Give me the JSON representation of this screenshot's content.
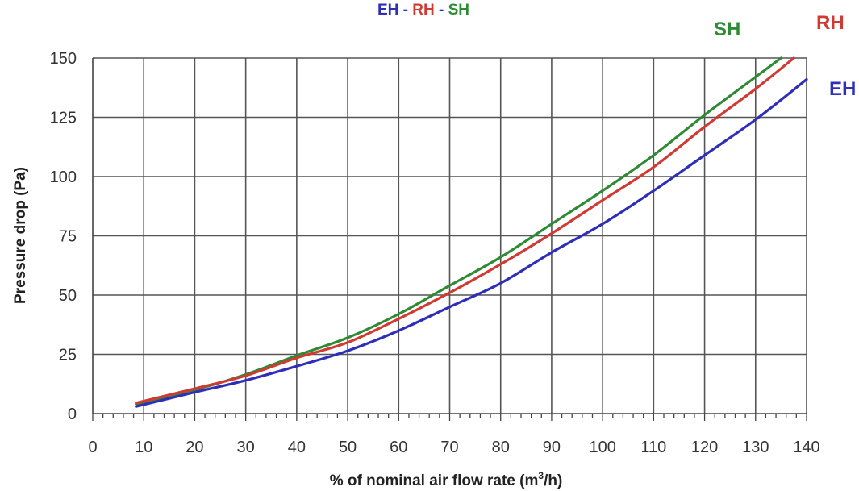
{
  "chart_data": {
    "type": "line",
    "title_parts": [
      {
        "text": "EH",
        "color": "#2e2eb8"
      },
      {
        "text": " - ",
        "color": "#2e2eb8"
      },
      {
        "text": "RH",
        "color": "#d03a32"
      },
      {
        "text": " - ",
        "color": "#2e2eb8"
      },
      {
        "text": "SH",
        "color": "#2f8a34"
      }
    ],
    "xlabel": "% of nominal air flow rate (m",
    "xlabel_sup": "3",
    "xlabel_end": "/h)",
    "ylabel": "Pressure drop (Pa)",
    "xlim": [
      0,
      140
    ],
    "ylim": [
      0,
      150
    ],
    "x_ticks": [
      0,
      10,
      20,
      30,
      40,
      50,
      60,
      70,
      80,
      90,
      100,
      110,
      120,
      130,
      140
    ],
    "y_ticks": [
      0,
      25,
      50,
      75,
      100,
      125,
      150
    ],
    "grid": true,
    "series": [
      {
        "name": "SH",
        "color": "#2f8a34",
        "points": [
          [
            8.5,
            4
          ],
          [
            20,
            10
          ],
          [
            30,
            16.5
          ],
          [
            40,
            24.5
          ],
          [
            50,
            32
          ],
          [
            60,
            42
          ],
          [
            70,
            54
          ],
          [
            80,
            66
          ],
          [
            90,
            80
          ],
          [
            100,
            94
          ],
          [
            110,
            109
          ],
          [
            120,
            126
          ],
          [
            130,
            142
          ],
          [
            135,
            150
          ]
        ]
      },
      {
        "name": "RH",
        "color": "#d03a32",
        "points": [
          [
            8.5,
            4.5
          ],
          [
            20,
            10.5
          ],
          [
            30,
            16
          ],
          [
            40,
            23.5
          ],
          [
            50,
            30
          ],
          [
            60,
            40
          ],
          [
            70,
            51
          ],
          [
            80,
            63
          ],
          [
            90,
            76
          ],
          [
            100,
            90
          ],
          [
            110,
            104
          ],
          [
            120,
            121
          ],
          [
            130,
            137
          ],
          [
            137.5,
            150
          ]
        ]
      },
      {
        "name": "EH",
        "color": "#2e2eb8",
        "points": [
          [
            8.5,
            3
          ],
          [
            20,
            9
          ],
          [
            30,
            14
          ],
          [
            40,
            20
          ],
          [
            50,
            26.5
          ],
          [
            60,
            35
          ],
          [
            70,
            45
          ],
          [
            80,
            55
          ],
          [
            90,
            68
          ],
          [
            100,
            80
          ],
          [
            110,
            94
          ],
          [
            120,
            109
          ],
          [
            130,
            124
          ],
          [
            140,
            141
          ]
        ]
      }
    ],
    "series_labels": [
      {
        "text": "SH",
        "color": "#2f8a34"
      },
      {
        "text": "RH",
        "color": "#d03a32"
      },
      {
        "text": "EH",
        "color": "#2e2eb8"
      }
    ]
  }
}
